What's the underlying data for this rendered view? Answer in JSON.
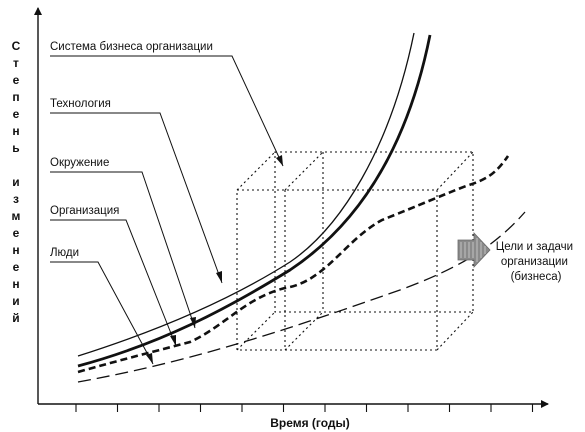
{
  "figure": {
    "y_axis_title": "Степень изменений",
    "x_axis_title": "Время (годы)",
    "curves": [
      {
        "label": "Система бизнеса организации",
        "style": "thin-solid"
      },
      {
        "label": "Технология",
        "style": "thick-solid"
      },
      {
        "label": "Окружение",
        "style": "thick-dashed"
      },
      {
        "label": "Организация",
        "style": "long-dashed"
      },
      {
        "label": "Люди",
        "style": "dotted-box"
      }
    ],
    "goals_label_lines": [
      "Цели и задачи",
      "организации",
      "(бизнеса)"
    ],
    "x_tick_count": 12,
    "colors": {
      "ink": "#111111",
      "goals_arrow": "#8a8a8a",
      "background": "#ffffff"
    }
  }
}
